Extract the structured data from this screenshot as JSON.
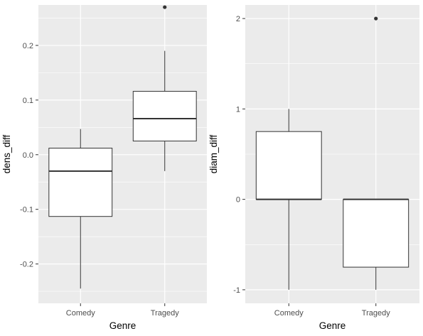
{
  "colors": {
    "panel_bg": "#EBEBEB",
    "grid_major": "#FFFFFF",
    "box_fill": "#FFFFFF",
    "box_line": "#333333",
    "outlier": "#333333"
  },
  "chart_data": [
    {
      "type": "box",
      "xlabel": "Genre",
      "ylabel": "dens_diff",
      "categories": [
        "Comedy",
        "Tragedy"
      ],
      "ylim": [
        -0.272,
        0.274
      ],
      "yticks": [
        -0.2,
        -0.1,
        0.0,
        0.1,
        0.2
      ],
      "ytick_labels": [
        "-0.2",
        "-0.1",
        "0.0",
        "0.1",
        "0.2"
      ],
      "grid": true,
      "boxes": [
        {
          "category": "Comedy",
          "lower_whisker": -0.245,
          "q1": -0.113,
          "median": -0.03,
          "q3": 0.012,
          "upper_whisker": 0.047,
          "outliers": []
        },
        {
          "category": "Tragedy",
          "lower_whisker": -0.03,
          "q1": 0.025,
          "median": 0.066,
          "q3": 0.116,
          "upper_whisker": 0.19,
          "outliers": [
            0.27
          ]
        }
      ]
    },
    {
      "type": "box",
      "xlabel": "Genre",
      "ylabel": "diam_diff",
      "categories": [
        "Comedy",
        "Tragedy"
      ],
      "ylim": [
        -1.15,
        2.15
      ],
      "yticks": [
        -1,
        0,
        1,
        2
      ],
      "ytick_labels": [
        "-1",
        "0",
        "1",
        "2"
      ],
      "grid": true,
      "boxes": [
        {
          "category": "Comedy",
          "lower_whisker": -1.0,
          "q1": 0.0,
          "median": 0.0,
          "q3": 0.75,
          "upper_whisker": 1.0,
          "outliers": []
        },
        {
          "category": "Tragedy",
          "lower_whisker": -1.0,
          "q1": -0.75,
          "median": 0.0,
          "q3": 0.0,
          "upper_whisker": 0.0,
          "outliers": [
            2.0
          ]
        }
      ]
    }
  ]
}
